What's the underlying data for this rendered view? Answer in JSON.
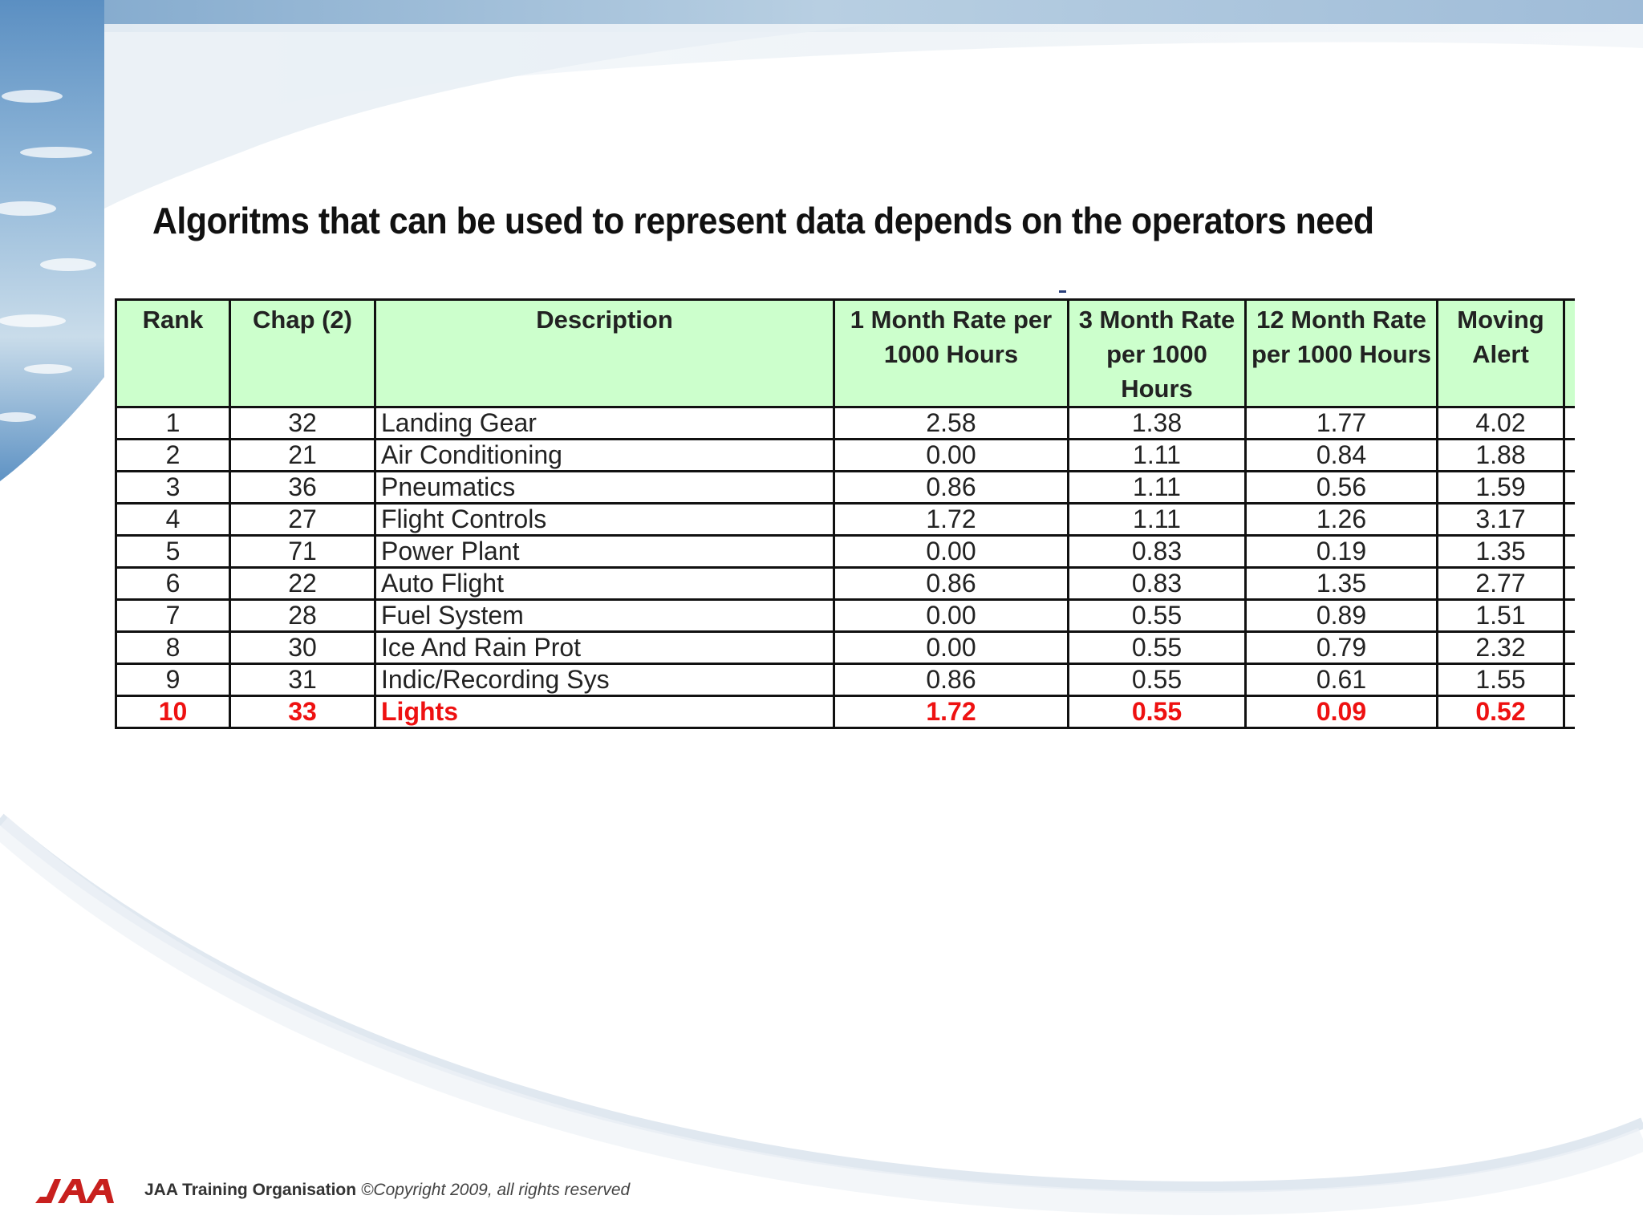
{
  "slide": {
    "title": "Algoritms that can be used to represent data depends on the operators need"
  },
  "table": {
    "headers": [
      "Rank",
      "Chap (2)",
      "Description",
      "1 Month Rate per 1000 Hours",
      "3 Month Rate per 1000 Hours",
      "12 Month Rate per 1000 Hours",
      "Moving Alert"
    ],
    "rows": [
      {
        "rank": "1",
        "chap": "32",
        "desc": "Landing Gear",
        "m1": "2.58",
        "m3": "1.38",
        "m12": "1.77",
        "alert": "4.02"
      },
      {
        "rank": "2",
        "chap": "21",
        "desc": "Air Conditioning",
        "m1": "0.00",
        "m3": "1.11",
        "m12": "0.84",
        "alert": "1.88"
      },
      {
        "rank": "3",
        "chap": "36",
        "desc": "Pneumatics",
        "m1": "0.86",
        "m3": "1.11",
        "m12": "0.56",
        "alert": "1.59"
      },
      {
        "rank": "4",
        "chap": "27",
        "desc": "Flight Controls",
        "m1": "1.72",
        "m3": "1.11",
        "m12": "1.26",
        "alert": "3.17"
      },
      {
        "rank": "5",
        "chap": "71",
        "desc": "Power Plant",
        "m1": "0.00",
        "m3": "0.83",
        "m12": "0.19",
        "alert": "1.35"
      },
      {
        "rank": "6",
        "chap": "22",
        "desc": "Auto Flight",
        "m1": "0.86",
        "m3": "0.83",
        "m12": "1.35",
        "alert": "2.77"
      },
      {
        "rank": "7",
        "chap": "28",
        "desc": "Fuel System",
        "m1": "0.00",
        "m3": "0.55",
        "m12": "0.89",
        "alert": "1.51"
      },
      {
        "rank": "8",
        "chap": "30",
        "desc": "Ice And Rain Prot",
        "m1": "0.00",
        "m3": "0.55",
        "m12": "0.79",
        "alert": "2.32"
      },
      {
        "rank": "9",
        "chap": "31",
        "desc": "Indic/Recording Sys",
        "m1": "0.86",
        "m3": "0.55",
        "m12": "0.61",
        "alert": "1.55"
      },
      {
        "rank": "10",
        "chap": "33",
        "desc": "Lights",
        "m1": "1.72",
        "m3": "0.55",
        "m12": "0.09",
        "alert": "0.52"
      }
    ],
    "highlight_color": "#ee1111",
    "header_bg": "#ccffcc"
  },
  "footer": {
    "logo": "JAA",
    "org": "JAA Training Organisation",
    "copyright": "©Copyright 2009, all rights reserved"
  },
  "colors": {
    "logo_red": "#c8201e",
    "sky_blue": "#6f9ec8"
  }
}
